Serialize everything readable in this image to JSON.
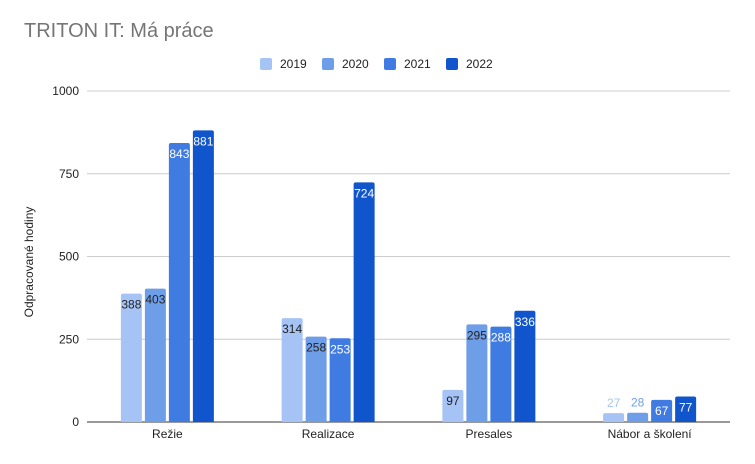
{
  "chart_data": {
    "type": "bar",
    "title": "TRITON IT: Má práce",
    "ylabel": "Odpracované hodiny",
    "xlabel": "",
    "categories": [
      "Režie",
      "Realizace",
      "Presales",
      "Nábor a školení"
    ],
    "series": [
      {
        "name": "2019",
        "values": [
          388,
          314,
          97,
          27
        ],
        "color": "#a6c3f5"
      },
      {
        "name": "2020",
        "values": [
          403,
          258,
          295,
          28
        ],
        "color": "#6f9ee8"
      },
      {
        "name": "2021",
        "values": [
          843,
          253,
          288,
          67
        ],
        "color": "#3f7be0"
      },
      {
        "name": "2022",
        "values": [
          881,
          724,
          336,
          77
        ],
        "color": "#1155cc"
      }
    ],
    "ylim": [
      0,
      1000
    ],
    "yticks": [
      0,
      250,
      500,
      750,
      1000
    ],
    "grid": true,
    "legend_position": "top-center"
  }
}
